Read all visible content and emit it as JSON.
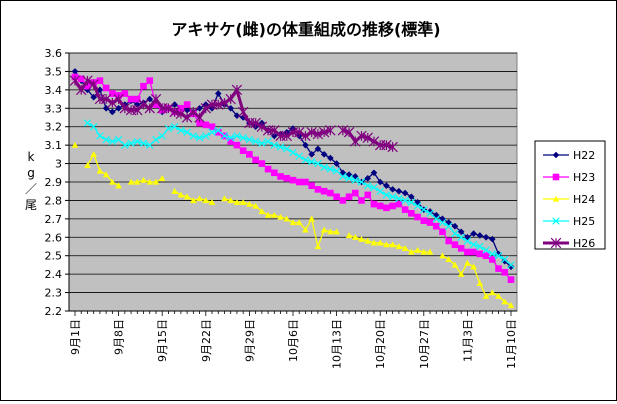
{
  "chart_data": {
    "type": "line",
    "title": "アキサケ(雌)の体重組成の推移(標準)",
    "ylabel": "kg／尾",
    "xlabel": "",
    "ylim": [
      2.2,
      3.6
    ],
    "yticks": [
      "2.2",
      "2.3",
      "2.4",
      "2.5",
      "2.6",
      "2.7",
      "2.8",
      "2.9",
      "3",
      "3.1",
      "3.2",
      "3.3",
      "3.4",
      "3.5",
      "3.6"
    ],
    "xlim": [
      0,
      70
    ],
    "xtick_labels": [
      "9月1日",
      "9月8日",
      "9月15日",
      "9月22日",
      "9月29日",
      "10月6日",
      "10月13日",
      "10月20日",
      "10月27日",
      "11月3日",
      "11月10日"
    ],
    "xtick_days": [
      0,
      7,
      14,
      21,
      28,
      35,
      42,
      49,
      56,
      63,
      70
    ],
    "grid": "horizontal",
    "legend_position": "right",
    "plot_background": "#c0c0c0",
    "series": [
      {
        "name": "H22",
        "color": "#000080",
        "marker": "diamond",
        "x": [
          0,
          1,
          2,
          3,
          4,
          5,
          6,
          7,
          8,
          9,
          10,
          11,
          12,
          13,
          14,
          15,
          16,
          17,
          18,
          19,
          20,
          21,
          22,
          23,
          24,
          25,
          26,
          27,
          28,
          29,
          30,
          31,
          32,
          33,
          34,
          35,
          36,
          37,
          38,
          39,
          40,
          41,
          42,
          43,
          44,
          45,
          46,
          47,
          48,
          49,
          50,
          51,
          52,
          53,
          54,
          55,
          56,
          57,
          58,
          59,
          60,
          61,
          62,
          63,
          64,
          65,
          66,
          67,
          68,
          69,
          70
        ],
        "values": [
          3.5,
          3.45,
          3.4,
          3.36,
          3.4,
          3.3,
          3.28,
          3.3,
          3.32,
          3.34,
          3.32,
          3.33,
          3.35,
          3.32,
          3.28,
          3.3,
          3.32,
          3.3,
          3.29,
          3.28,
          3.3,
          3.32,
          3.3,
          3.38,
          3.32,
          3.3,
          3.26,
          3.25,
          3.22,
          3.2,
          3.22,
          3.18,
          3.15,
          3.16,
          3.17,
          3.19,
          3.15,
          3.1,
          3.05,
          3.08,
          3.05,
          3.03,
          3.0,
          2.95,
          2.94,
          2.93,
          2.9,
          2.92,
          2.95,
          2.9,
          2.88,
          2.86,
          2.85,
          2.84,
          2.82,
          2.79,
          2.75,
          2.74,
          2.72,
          2.7,
          2.68,
          2.66,
          2.63,
          2.6,
          2.62,
          2.61,
          2.6,
          2.59,
          2.51,
          2.47,
          2.44
        ]
      },
      {
        "name": "H23",
        "color": "#ff00ff",
        "marker": "square",
        "x": [
          0,
          1,
          2,
          3,
          4,
          5,
          6,
          7,
          8,
          9,
          10,
          11,
          12,
          13,
          14,
          15,
          16,
          17,
          18,
          19,
          20,
          21,
          22,
          23,
          24,
          25,
          26,
          27,
          28,
          29,
          30,
          31,
          32,
          33,
          34,
          35,
          36,
          37,
          38,
          39,
          40,
          41,
          42,
          43,
          44,
          45,
          46,
          47,
          48,
          49,
          50,
          51,
          52,
          53,
          54,
          55,
          56,
          57,
          58,
          59,
          60,
          61,
          62,
          63,
          64,
          65,
          66,
          67,
          68,
          69,
          70
        ],
        "values": [
          3.47,
          3.46,
          3.42,
          3.44,
          3.45,
          3.41,
          3.38,
          3.37,
          3.38,
          3.35,
          3.35,
          3.42,
          3.45,
          3.32,
          3.29,
          3.3,
          3.28,
          3.3,
          3.32,
          3.27,
          3.22,
          3.21,
          3.2,
          3.17,
          3.15,
          3.12,
          3.1,
          3.07,
          3.05,
          3.02,
          3.0,
          2.97,
          2.95,
          2.93,
          2.92,
          2.91,
          2.9,
          2.9,
          2.88,
          2.86,
          2.85,
          2.84,
          2.82,
          2.8,
          2.82,
          2.84,
          2.8,
          2.83,
          2.78,
          2.77,
          2.76,
          2.77,
          2.78,
          2.75,
          2.73,
          2.71,
          2.69,
          2.68,
          2.66,
          2.63,
          2.58,
          2.56,
          2.54,
          2.52,
          2.52,
          2.51,
          2.5,
          2.48,
          2.43,
          2.41,
          2.37
        ]
      },
      {
        "name": "H24",
        "color": "#ffff00",
        "marker": "triangle",
        "x": [
          0,
          2,
          3,
          4,
          5,
          6,
          7,
          9,
          10,
          11,
          12,
          13,
          14,
          16,
          17,
          18,
          19,
          20,
          21,
          22,
          24,
          25,
          26,
          27,
          28,
          29,
          30,
          31,
          32,
          33,
          34,
          35,
          36,
          37,
          38,
          39,
          40,
          41,
          42,
          44,
          45,
          46,
          47,
          48,
          49,
          50,
          51,
          52,
          53,
          54,
          55,
          56,
          57,
          59,
          60,
          61,
          62,
          63,
          64,
          65,
          66,
          67,
          68,
          69,
          70
        ],
        "values": [
          3.1,
          2.99,
          3.05,
          2.96,
          2.94,
          2.9,
          2.88,
          2.9,
          2.9,
          2.91,
          2.9,
          2.9,
          2.92,
          2.85,
          2.83,
          2.82,
          2.8,
          2.81,
          2.8,
          2.79,
          2.81,
          2.8,
          2.79,
          2.79,
          2.78,
          2.77,
          2.74,
          2.72,
          2.72,
          2.71,
          2.7,
          2.68,
          2.68,
          2.64,
          2.7,
          2.55,
          2.64,
          2.63,
          2.63,
          2.61,
          2.6,
          2.59,
          2.58,
          2.57,
          2.57,
          2.56,
          2.56,
          2.55,
          2.54,
          2.52,
          2.53,
          2.52,
          2.52,
          2.5,
          2.48,
          2.45,
          2.4,
          2.46,
          2.44,
          2.35,
          2.28,
          2.3,
          2.28,
          2.25,
          2.23
        ]
      },
      {
        "name": "H25",
        "color": "#00ffff",
        "marker": "x",
        "x": [
          2,
          3,
          4,
          5,
          6,
          7,
          8,
          9,
          10,
          11,
          12,
          13,
          14,
          15,
          16,
          17,
          18,
          19,
          20,
          21,
          22,
          23,
          24,
          25,
          26,
          27,
          28,
          29,
          30,
          31,
          32,
          33,
          34,
          35,
          36,
          37,
          38,
          39,
          40,
          41,
          42,
          43,
          44,
          45,
          46,
          47,
          48,
          49,
          50,
          51,
          52,
          53,
          54,
          55,
          56,
          57,
          58,
          59,
          60,
          61,
          62,
          63,
          64,
          65,
          66,
          67,
          68,
          69,
          70
        ],
        "values": [
          3.22,
          3.2,
          3.15,
          3.13,
          3.12,
          3.13,
          3.1,
          3.11,
          3.12,
          3.11,
          3.1,
          3.13,
          3.15,
          3.19,
          3.2,
          3.18,
          3.17,
          3.15,
          3.14,
          3.15,
          3.17,
          3.18,
          3.15,
          3.14,
          3.15,
          3.14,
          3.13,
          3.12,
          3.11,
          3.12,
          3.1,
          3.09,
          3.08,
          3.06,
          3.04,
          3.02,
          3.01,
          3.0,
          2.98,
          2.97,
          2.96,
          2.93,
          2.92,
          2.91,
          2.9,
          2.88,
          2.87,
          2.85,
          2.83,
          2.82,
          2.81,
          2.8,
          2.79,
          2.77,
          2.75,
          2.73,
          2.7,
          2.68,
          2.66,
          2.62,
          2.6,
          2.58,
          2.56,
          2.55,
          2.53,
          2.51,
          2.5,
          2.48,
          2.45
        ]
      },
      {
        "name": "H26",
        "color": "#800080",
        "marker": "star",
        "x": [
          0,
          1,
          2,
          3,
          4,
          5,
          6,
          7,
          8,
          9,
          10,
          11,
          12,
          13,
          14,
          15,
          16,
          17,
          18,
          19,
          20,
          21,
          22,
          23,
          24,
          25,
          26,
          27,
          28,
          29,
          30,
          31,
          32,
          33,
          34,
          35,
          36,
          37,
          38,
          39,
          40,
          41,
          43,
          44,
          45,
          46,
          47,
          48,
          49,
          50,
          51
        ],
        "values": [
          3.45,
          3.4,
          3.45,
          3.43,
          3.35,
          3.35,
          3.33,
          3.35,
          3.3,
          3.29,
          3.29,
          3.32,
          3.3,
          3.35,
          3.3,
          3.3,
          3.28,
          3.27,
          3.25,
          3.28,
          3.25,
          3.3,
          3.32,
          3.32,
          3.33,
          3.35,
          3.4,
          3.28,
          3.22,
          3.22,
          3.2,
          3.18,
          3.18,
          3.15,
          3.15,
          3.17,
          3.17,
          3.15,
          3.17,
          3.16,
          3.17,
          3.18,
          3.18,
          3.17,
          3.12,
          3.15,
          3.14,
          3.12,
          3.1,
          3.1,
          3.09
        ]
      }
    ]
  }
}
